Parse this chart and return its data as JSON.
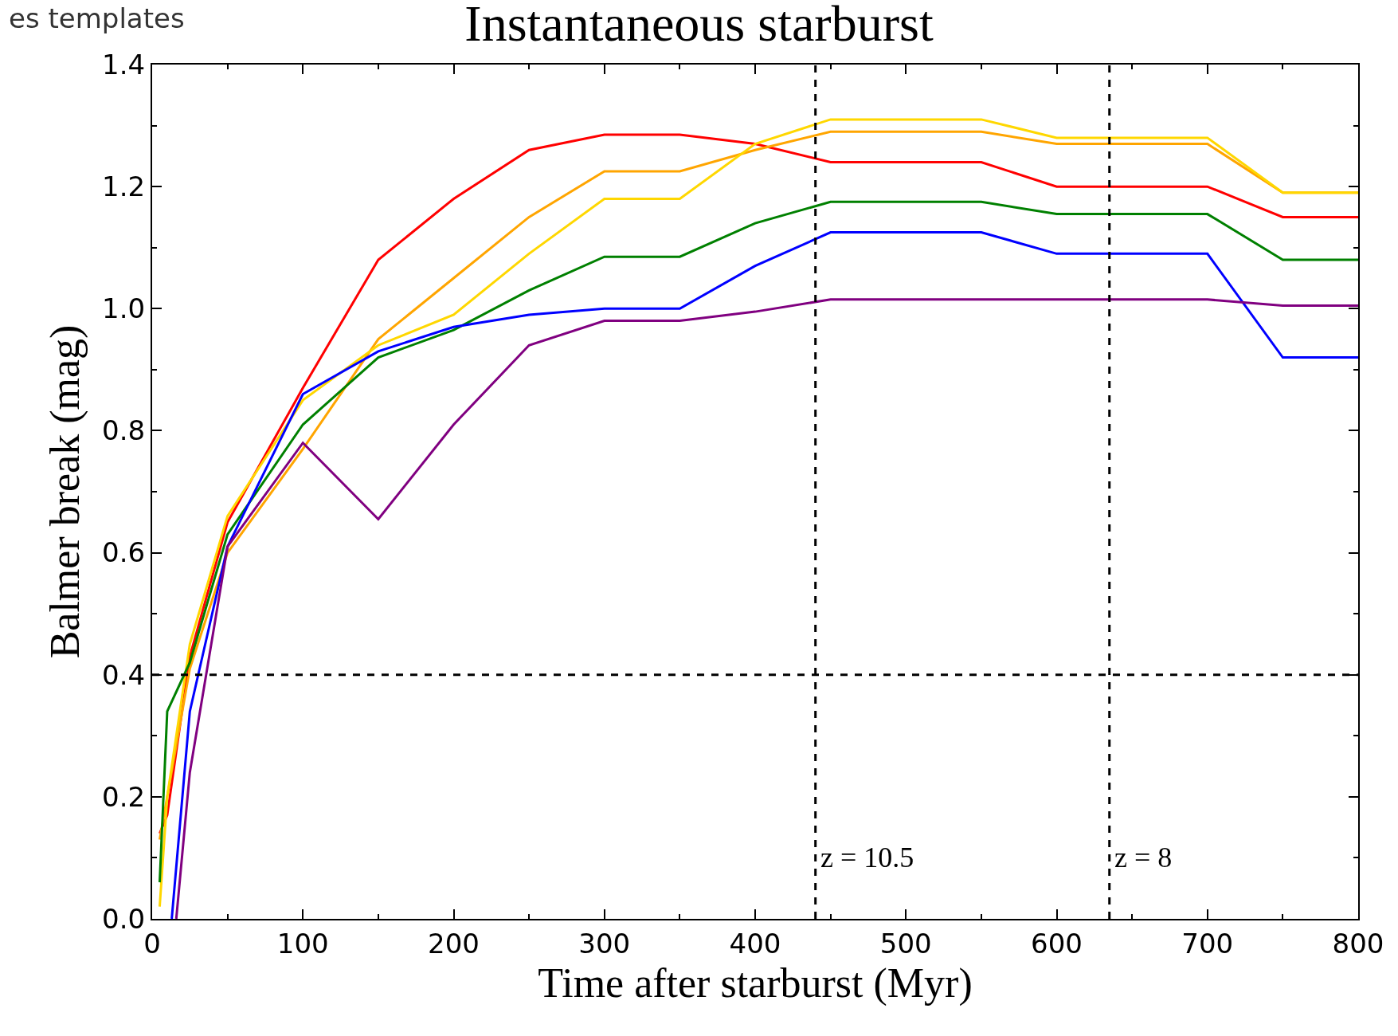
{
  "chart_data": {
    "type": "line",
    "title": "Instantaneous starburst",
    "xlabel": "Time after starburst (Myr)",
    "ylabel": "Balmer break (mag)",
    "annotations": [
      "es templates",
      {
        "text": "z = 10.5",
        "x": 440,
        "y": 0.1
      },
      {
        "text": "z = 8",
        "x": 635,
        "y": 0.1
      }
    ],
    "xlim": [
      0,
      800
    ],
    "xticks": [
      0,
      100,
      200,
      300,
      400,
      500,
      600,
      700,
      800
    ],
    "ylim": [
      0,
      1.4
    ],
    "yticks": [
      {
        "value": 0,
        "label": "0.0"
      },
      {
        "value": 0.2,
        "label": "0.2"
      },
      {
        "value": 0.4,
        "label": "0.4"
      },
      {
        "value": 0.6,
        "label": "0.6"
      },
      {
        "value": 0.8,
        "label": "0.8"
      },
      {
        "value": 1,
        "label": "1.0"
      },
      {
        "value": 1.2,
        "label": "1.2"
      },
      {
        "value": 1.4,
        "label": "1.4"
      }
    ],
    "grid": false,
    "line_style": "solid",
    "ref_lines": [
      {
        "axis": "y",
        "value": 0.4,
        "color": "#000000",
        "line_style": "dashed"
      },
      {
        "axis": "x",
        "value": 440,
        "color": "#000000",
        "line_style": "dashed"
      },
      {
        "axis": "x",
        "value": 635,
        "color": "#000000",
        "line_style": "dashed"
      }
    ],
    "series": [
      {
        "color": "#ff0000",
        "x": [
          5,
          10,
          25,
          50,
          100,
          150,
          200,
          250,
          300,
          350,
          400,
          450,
          550,
          600,
          700,
          750,
          800
        ],
        "values": [
          0.14,
          0.17,
          0.43,
          0.65,
          0.87,
          1.08,
          1.18,
          1.26,
          1.285,
          1.285,
          1.27,
          1.24,
          1.24,
          1.2,
          1.2,
          1.15,
          1.15
        ]
      },
      {
        "color": "#ffa500",
        "x": [
          5,
          10,
          25,
          50,
          100,
          150,
          200,
          250,
          300,
          350,
          400,
          450,
          550,
          600,
          700,
          750,
          800
        ],
        "values": [
          0.13,
          0.2,
          0.41,
          0.6,
          0.77,
          0.95,
          1.05,
          1.15,
          1.225,
          1.225,
          1.26,
          1.29,
          1.29,
          1.27,
          1.27,
          1.19,
          1.19
        ]
      },
      {
        "color": "#ffd700",
        "x": [
          5,
          10,
          25,
          50,
          100,
          150,
          200,
          250,
          300,
          350,
          400,
          450,
          550,
          600,
          700,
          750,
          800
        ],
        "values": [
          0.02,
          0.2,
          0.45,
          0.66,
          0.85,
          0.94,
          0.99,
          1.09,
          1.18,
          1.18,
          1.27,
          1.31,
          1.31,
          1.28,
          1.28,
          1.19,
          1.19
        ]
      },
      {
        "color": "#008000",
        "x": [
          5,
          10,
          25,
          50,
          100,
          150,
          200,
          250,
          300,
          350,
          400,
          450,
          550,
          600,
          700,
          750,
          800
        ],
        "values": [
          0.06,
          0.34,
          0.42,
          0.63,
          0.81,
          0.92,
          0.965,
          1.03,
          1.085,
          1.085,
          1.14,
          1.175,
          1.175,
          1.155,
          1.155,
          1.08,
          1.08
        ]
      },
      {
        "color": "#0000ff",
        "x": [
          13,
          25,
          50,
          100,
          150,
          200,
          250,
          300,
          350,
          400,
          450,
          550,
          600,
          700,
          750,
          800
        ],
        "values": [
          0,
          0.34,
          0.61,
          0.86,
          0.93,
          0.97,
          0.99,
          1.0,
          1.0,
          1.07,
          1.125,
          1.125,
          1.09,
          1.09,
          0.92,
          0.92
        ]
      },
      {
        "color": "#800080",
        "x": [
          16,
          25,
          50,
          100,
          150,
          200,
          250,
          300,
          350,
          400,
          450,
          550,
          600,
          700,
          750,
          800
        ],
        "values": [
          0,
          0.24,
          0.61,
          0.78,
          0.655,
          0.81,
          0.94,
          0.98,
          0.98,
          0.995,
          1.015,
          1.015,
          1.015,
          1.015,
          1.005,
          1.005
        ]
      }
    ]
  }
}
